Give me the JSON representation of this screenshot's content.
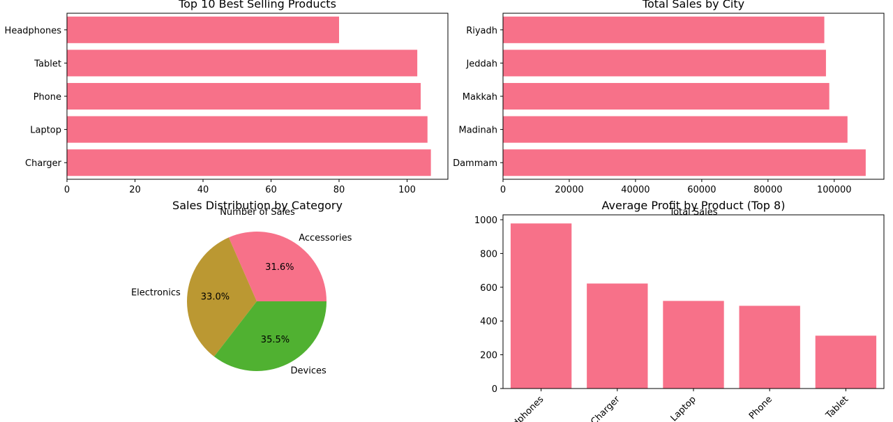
{
  "colors": {
    "bar": "#f77189",
    "pie": [
      "#f77189",
      "#bb9832",
      "#50b131"
    ]
  },
  "chart_data": [
    {
      "type": "bar",
      "orientation": "horizontal",
      "title": "Top 10 Best Selling Products",
      "xlabel": "Number of Sales",
      "categories": [
        "Headphones",
        "Tablet",
        "Phone",
        "Laptop",
        "Charger"
      ],
      "values": [
        80,
        103,
        104,
        106,
        107
      ],
      "xlim": [
        0,
        112
      ],
      "xticks": [
        "0",
        "20",
        "40",
        "60",
        "80",
        "100"
      ]
    },
    {
      "type": "bar",
      "orientation": "horizontal",
      "title": "Total Sales by City",
      "xlabel": "Total Sales",
      "categories": [
        "Riyadh",
        "Jeddah",
        "Makkah",
        "Madinah",
        "Dammam"
      ],
      "values": [
        97000,
        97500,
        98500,
        104000,
        109500
      ],
      "xlim": [
        0,
        115000
      ],
      "xticks": [
        "0",
        "20000",
        "40000",
        "60000",
        "80000",
        "100000"
      ]
    },
    {
      "type": "pie",
      "title": "Sales Distribution by Category",
      "labels": [
        "Accessories",
        "Electronics",
        "Devices"
      ],
      "values": [
        31.6,
        33.0,
        35.5
      ],
      "pct_labels": [
        "31.6%",
        "33.0%",
        "35.5%"
      ]
    },
    {
      "type": "bar",
      "orientation": "vertical",
      "title": "Average Profit by Product (Top 8)",
      "categories": [
        "Headphones",
        "Charger",
        "Laptop",
        "Phone",
        "Tablet"
      ],
      "values": [
        978,
        622,
        519,
        490,
        313
      ],
      "ylim": [
        0,
        1000
      ],
      "yticks": [
        "0",
        "200",
        "400",
        "600",
        "800",
        "1000"
      ]
    }
  ]
}
